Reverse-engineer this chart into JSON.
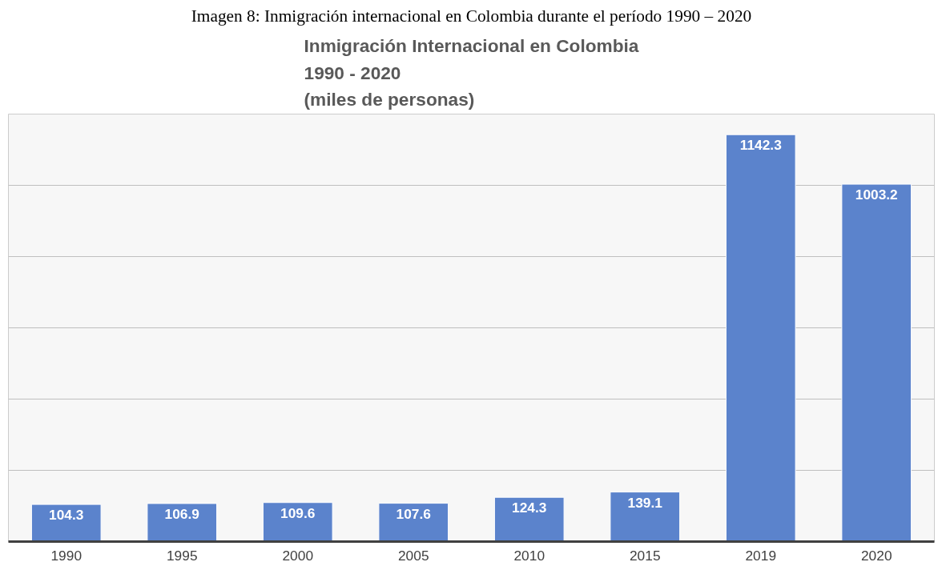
{
  "chart_data": {
    "type": "bar",
    "title": "Inmigración Internacional en Colombia\n1990 - 2020\n(miles de personas)",
    "annotations": [
      "Imagen 8: Inmigración internacional en Colombia durante el período 1990 – 2020"
    ],
    "categories": [
      "1990",
      "1995",
      "2000",
      "2005",
      "2010",
      "2015",
      "2019",
      "2020"
    ],
    "values": [
      104.3,
      106.9,
      109.6,
      107.6,
      124.3,
      139.1,
      1142.3,
      1003.2
    ],
    "color": "#5b83cc",
    "data_labels": true,
    "ylim": [
      0,
      1200
    ],
    "yticks": [
      {
        "value": 0,
        "label": null
      },
      {
        "value": 200,
        "label": null
      },
      {
        "value": 400,
        "label": null
      },
      {
        "value": 600,
        "label": null
      },
      {
        "value": 800,
        "label": null
      },
      {
        "value": 1000,
        "label": null
      },
      {
        "value": 1200,
        "label": null
      }
    ],
    "grid": "y",
    "tick_labels": "x"
  }
}
